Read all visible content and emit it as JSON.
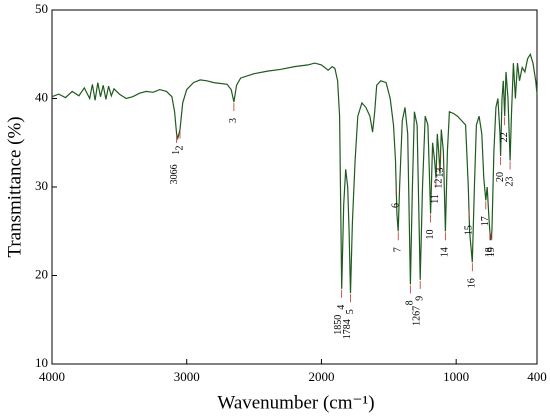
{
  "chart_data": {
    "type": "line",
    "xlabel": "Wavenumber (cm⁻¹)",
    "ylabel": "Transmittance (%)",
    "color": "#1f5a1f",
    "xlim": [
      4000,
      400
    ],
    "ylim": [
      10,
      50
    ],
    "xticks": [
      4000,
      3000,
      2000,
      1000,
      400
    ],
    "yticks": [
      10,
      20,
      30,
      40,
      50
    ],
    "x": [
      4000,
      3950,
      3900,
      3850,
      3800,
      3760,
      3720,
      3700,
      3680,
      3660,
      3640,
      3620,
      3600,
      3580,
      3560,
      3540,
      3500,
      3450,
      3400,
      3350,
      3300,
      3250,
      3200,
      3150,
      3110,
      3090,
      3075,
      3066,
      3050,
      3030,
      3000,
      2950,
      2900,
      2850,
      2800,
      2700,
      2670,
      2650,
      2630,
      2600,
      2500,
      2400,
      2300,
      2200,
      2100,
      2050,
      2000,
      1950,
      1920,
      1900,
      1880,
      1865,
      1850,
      1835,
      1820,
      1805,
      1795,
      1784,
      1770,
      1750,
      1730,
      1700,
      1670,
      1640,
      1620,
      1605,
      1590,
      1560,
      1520,
      1490,
      1465,
      1450,
      1440,
      1430,
      1420,
      1400,
      1380,
      1360,
      1340,
      1325,
      1310,
      1290,
      1267,
      1250,
      1230,
      1210,
      1190,
      1175,
      1160,
      1150,
      1140,
      1130,
      1120,
      1110,
      1095,
      1080,
      1065,
      1050,
      1020,
      990,
      960,
      930,
      910,
      900,
      880,
      865,
      850,
      830,
      810,
      795,
      780,
      770,
      755,
      745,
      735,
      720,
      705,
      690,
      675,
      670,
      660,
      650,
      640,
      630,
      615,
      600,
      590,
      575,
      560,
      545,
      530,
      510,
      490,
      470,
      450,
      430,
      410,
      400
    ],
    "values": [
      40.2,
      40.5,
      40.1,
      40.8,
      40.3,
      41.2,
      40.0,
      41.6,
      39.8,
      41.8,
      40.2,
      41.5,
      39.9,
      41.4,
      40.3,
      41.1,
      40.5,
      40.0,
      40.2,
      40.6,
      40.8,
      40.7,
      41.0,
      40.8,
      40.2,
      38.5,
      36.0,
      35.5,
      36.5,
      39.5,
      41.0,
      41.8,
      42.1,
      42.0,
      41.8,
      41.6,
      41.0,
      39.6,
      41.5,
      42.3,
      42.8,
      43.1,
      43.3,
      43.6,
      43.8,
      44.0,
      43.8,
      43.2,
      43.6,
      43.4,
      42.0,
      38.0,
      18.5,
      28.0,
      32.0,
      30.0,
      25.0,
      18.0,
      26.0,
      33.0,
      38.0,
      39.5,
      39.0,
      38.0,
      36.2,
      38.5,
      41.5,
      42.0,
      41.8,
      40.0,
      37.0,
      33.0,
      27.0,
      25.0,
      30.0,
      37.5,
      39.0,
      36.0,
      19.0,
      30.0,
      38.5,
      37.0,
      19.5,
      30.0,
      38.0,
      37.0,
      27.0,
      35.0,
      33.0,
      31.0,
      36.0,
      34.0,
      31.5,
      36.5,
      34.0,
      25.0,
      34.0,
      38.5,
      38.3,
      38.0,
      37.5,
      37.0,
      30.0,
      25.0,
      21.5,
      30.0,
      37.0,
      38.0,
      36.0,
      31.0,
      28.5,
      30.0,
      26.0,
      24.0,
      25.0,
      34.0,
      39.0,
      40.0,
      36.0,
      33.5,
      40.0,
      42.0,
      38.0,
      43.0,
      40.0,
      33.0,
      38.0,
      44.0,
      40.0,
      44.0,
      42.0,
      43.5,
      43.0,
      44.5,
      45.0,
      44.0,
      42.0,
      40.5
    ],
    "peaks": [
      {
        "label": "1",
        "x": 3075
      },
      {
        "label": "2",
        "x": 3050
      },
      {
        "label": "3",
        "x": 2650
      },
      {
        "label": "4",
        "x": 1850
      },
      {
        "label": "5",
        "x": 1784
      },
      {
        "label": "6",
        "x": 1445
      },
      {
        "label": "7",
        "x": 1430
      },
      {
        "label": "8",
        "x": 1340
      },
      {
        "label": "9",
        "x": 1267
      },
      {
        "label": "10",
        "x": 1190
      },
      {
        "label": "11",
        "x": 1150
      },
      {
        "label": "12",
        "x": 1125
      },
      {
        "label": "13",
        "x": 1115
      },
      {
        "label": "14",
        "x": 1080
      },
      {
        "label": "15",
        "x": 905
      },
      {
        "label": "16",
        "x": 880
      },
      {
        "label": "17",
        "x": 780
      },
      {
        "label": "18",
        "x": 750
      },
      {
        "label": "19",
        "x": 735
      },
      {
        "label": "20",
        "x": 670
      },
      {
        "label": "22",
        "x": 640
      },
      {
        "label": "23",
        "x": 600
      }
    ],
    "wavenumber_labels": [
      {
        "text": "3066",
        "x": 3066
      },
      {
        "text": "1850",
        "x": 1850
      },
      {
        "text": "1784",
        "x": 1784
      },
      {
        "text": "1267",
        "x": 1267
      }
    ]
  }
}
